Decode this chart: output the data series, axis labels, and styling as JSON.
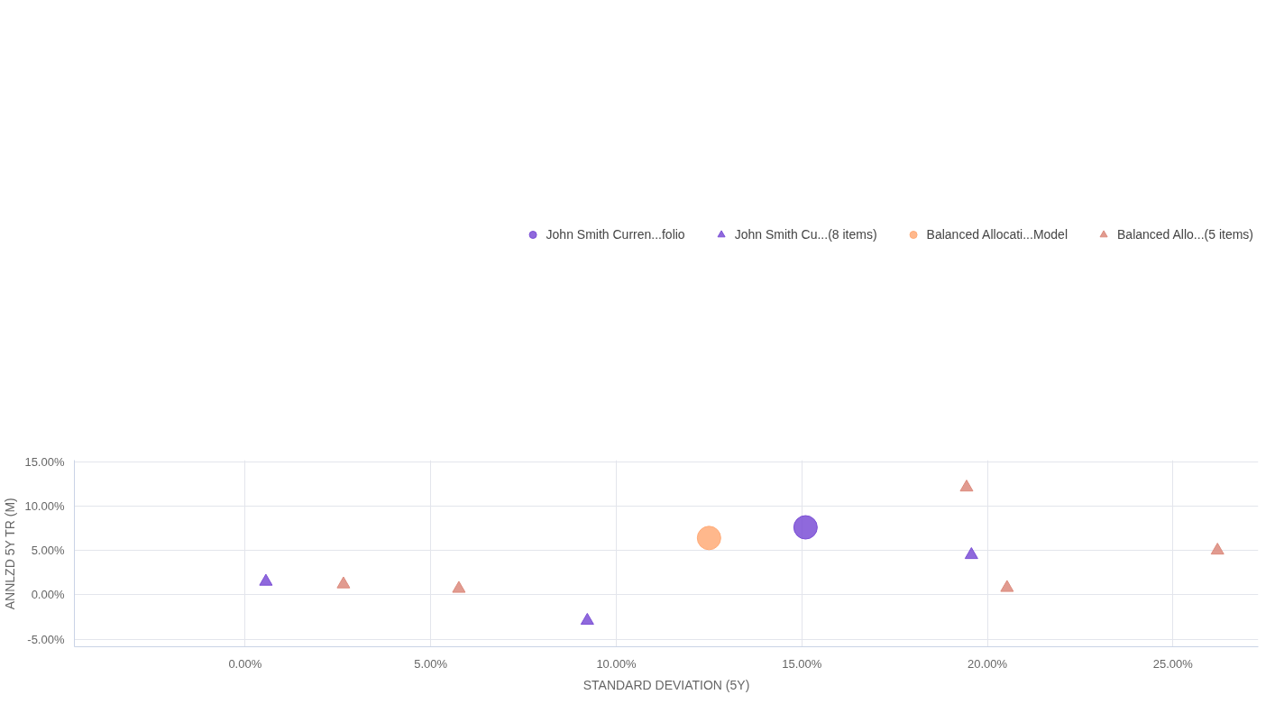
{
  "chart_data": {
    "type": "scatter",
    "xlabel": "STANDARD DEVIATION (5Y)",
    "ylabel": "ANNLZD 5Y TR (M)",
    "xlim": [
      -4.6,
      27.3
    ],
    "ylim": [
      -5.84,
      15.16
    ],
    "xticks": [
      {
        "value": 0,
        "label": "0.00%"
      },
      {
        "value": 5,
        "label": "5.00%"
      },
      {
        "value": 10,
        "label": "10.00%"
      },
      {
        "value": 15,
        "label": "15.00%"
      },
      {
        "value": 20,
        "label": "20.00%"
      },
      {
        "value": 25,
        "label": "25.00%"
      }
    ],
    "yticks": [
      {
        "value": -5,
        "label": "-5.00%"
      },
      {
        "value": 0,
        "label": "0.00%"
      },
      {
        "value": 5,
        "label": "5.00%"
      },
      {
        "value": 10,
        "label": "10.00%"
      },
      {
        "value": 15,
        "label": "15.00%"
      }
    ],
    "grid": true,
    "legend": "top",
    "series": [
      {
        "name": "John Smith Curren...folio",
        "color": "#7b4fd6",
        "marker": "circle",
        "x": [
          15.1
        ],
        "values": [
          7.6
        ]
      },
      {
        "name": "John Smith Cu...(8 items)",
        "color": "#7b4fd6",
        "marker": "triangle",
        "x": [
          0.56,
          9.22,
          19.57
        ],
        "values": [
          1.5,
          -2.9,
          4.5
        ]
      },
      {
        "name": "Balanced Allocati...Model",
        "color": "#ffab78",
        "marker": "circle",
        "x": [
          12.5
        ],
        "values": [
          6.4
        ]
      },
      {
        "name": "Balanced Allo...(5 items)",
        "color": "#dc8a7c",
        "marker": "triangle",
        "x": [
          19.44,
          2.65,
          5.76,
          20.53,
          26.2
        ],
        "values": [
          12.1,
          1.2,
          0.7,
          0.8,
          5.0
        ]
      }
    ]
  }
}
